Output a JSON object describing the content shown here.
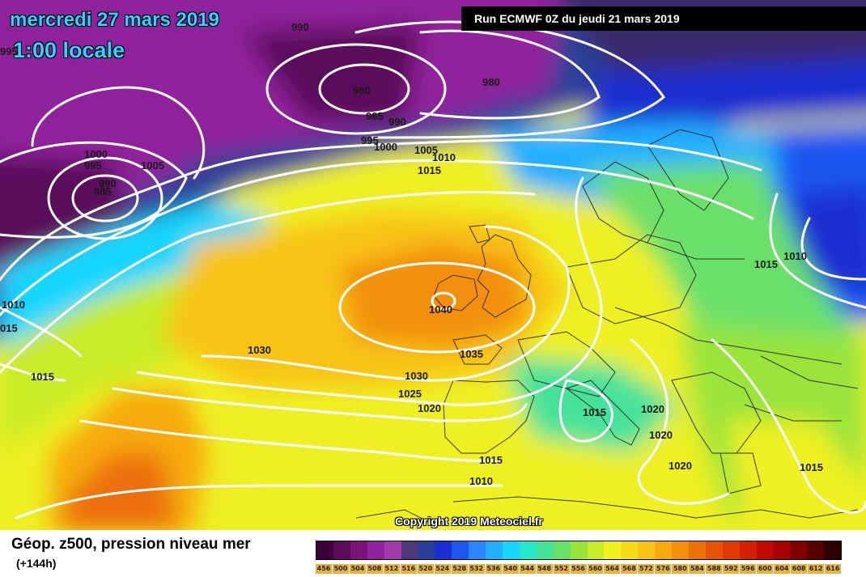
{
  "header": {
    "date": "mercredi 27 mars 2019",
    "time": "1:00 locale",
    "run": "Run ECMWF 0Z du jeudi 21 mars 2019"
  },
  "copyright": "Copyright 2019 Meteociel.fr",
  "legend": {
    "title": "Géop. z500, pression niveau mer",
    "subtitle": "(+144h)",
    "values": [
      "456",
      "500",
      "504",
      "508",
      "512",
      "516",
      "520",
      "524",
      "528",
      "532",
      "536",
      "540",
      "544",
      "548",
      "552",
      "556",
      "560",
      "564",
      "568",
      "572",
      "576",
      "580",
      "584",
      "588",
      "592",
      "596",
      "600",
      "604",
      "608",
      "612",
      "616"
    ],
    "colors": [
      "#3b003b",
      "#5a0e5a",
      "#7a137a",
      "#90229b",
      "#a03aa8",
      "#4a3a7a",
      "#2a3f9a",
      "#1a2fd0",
      "#1e56f0",
      "#2e86ff",
      "#20b0ff",
      "#18d6ff",
      "#24e8c8",
      "#46e29a",
      "#6ae06a",
      "#9ae43a",
      "#c8ec28",
      "#eef020",
      "#f6dc18",
      "#f8c414",
      "#f6aa10",
      "#f2900c",
      "#ec7008",
      "#e65404",
      "#e03a02",
      "#d42000",
      "#c00c00",
      "#a80000",
      "#800000",
      "#560000",
      "#2a0000"
    ]
  },
  "isobars": [
    {
      "value": "990"
    },
    {
      "value": "995"
    },
    {
      "value": "980"
    },
    {
      "value": "985"
    },
    {
      "value": "990"
    },
    {
      "value": "980"
    },
    {
      "value": "995"
    },
    {
      "value": "1000"
    },
    {
      "value": "1005"
    },
    {
      "value": "1010"
    },
    {
      "value": "1015"
    },
    {
      "value": "1000"
    },
    {
      "value": "995"
    },
    {
      "value": "990"
    },
    {
      "value": "985"
    },
    {
      "value": "1005"
    },
    {
      "value": "1010"
    },
    {
      "value": "015"
    },
    {
      "value": "1015"
    },
    {
      "value": "1030"
    },
    {
      "value": "1040"
    },
    {
      "value": "1035"
    },
    {
      "value": "1030"
    },
    {
      "value": "1025"
    },
    {
      "value": "1020"
    },
    {
      "value": "1015"
    },
    {
      "value": "1020"
    },
    {
      "value": "1020"
    },
    {
      "value": "1020"
    },
    {
      "value": "1015"
    },
    {
      "value": "1010"
    },
    {
      "value": "1015"
    },
    {
      "value": "1010"
    },
    {
      "value": "1015"
    }
  ]
}
